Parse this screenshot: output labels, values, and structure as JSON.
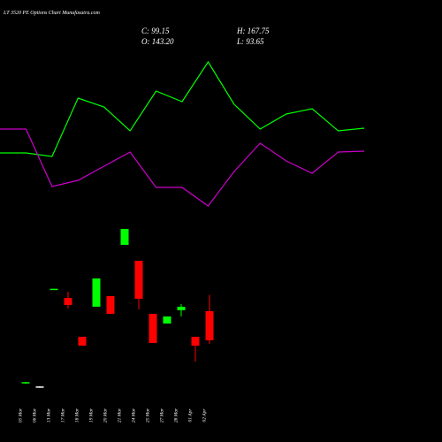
{
  "chart_data": [
    {
      "type": "candlestick",
      "title": "LT 3520 PE Options Chart Munafasutra.com",
      "annotations": [
        "C: 99.15",
        "H: 167.75",
        "O: 143.20",
        "L: 93.65"
      ],
      "categories": [
        "05 Mar",
        "06 Mar",
        "13 Mar",
        "17 Mar",
        "18 Mar",
        "19 Mar",
        "20 Mar",
        "21 Mar",
        "24 Mar",
        "25 Mar",
        "27 Mar",
        "28 Mar",
        "01 Apr",
        "02 Apr"
      ],
      "open": [
        34,
        29.5,
        176,
        163.2,
        104.5,
        149.9,
        165.9,
        243.3,
        219.3,
        139.2,
        124.5,
        144.5,
        104.5,
        143.2
      ],
      "high": [
        36.5,
        30,
        177,
        172.6,
        104.5,
        192.6,
        165.9,
        267.4,
        219.3,
        139.2,
        135.2,
        153.9,
        104.5,
        167.75
      ],
      "low": [
        33.5,
        29,
        176,
        147.2,
        91.1,
        149.9,
        139.2,
        243.3,
        145.9,
        95.1,
        124.5,
        135.2,
        67.1,
        93.65
      ],
      "close": [
        36,
        29.5,
        177,
        152.5,
        91.1,
        192.6,
        139.2,
        267.4,
        161.9,
        95.1,
        135.2,
        149.9,
        91.1,
        99.15
      ],
      "up_color": "#00ff00",
      "down_color": "#ff0000",
      "flat_color": "#ffffff",
      "ylim": [
        -54.4,
        613.1
      ]
    },
    {
      "type": "line",
      "series": [
        {
          "color": "#00ff00",
          "values": [
            327,
            327,
            323,
            389,
            379,
            352,
            397,
            385,
            430,
            382,
            354,
            371,
            377,
            352,
            355
          ]
        },
        {
          "color": "#cc00cc",
          "values": [
            354,
            354,
            289,
            296,
            312,
            328,
            288,
            288,
            267,
            306,
            338,
            318,
            304,
            328,
            329
          ]
        }
      ],
      "ylim": [
        0,
        500
      ]
    }
  ]
}
